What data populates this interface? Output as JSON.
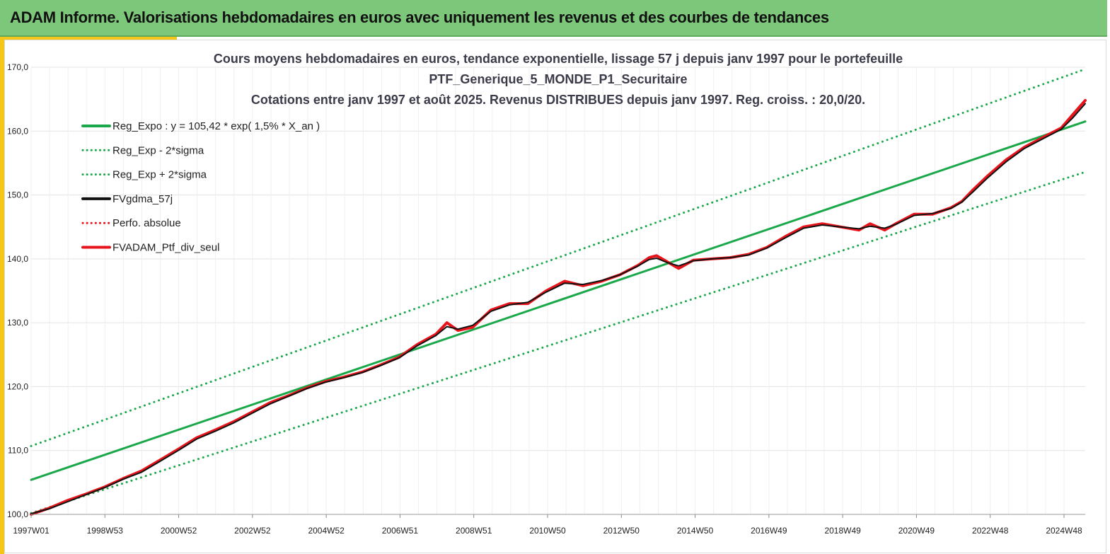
{
  "header": {
    "title": "ADAM Informe. Valorisations hebdomadaires en euros avec uniquement les revenus et des courbes de tendances"
  },
  "colors": {
    "header_bg": "#7dc77a",
    "accent": "#f5c518",
    "green": "#1aa84a",
    "red": "#e8141b",
    "black": "#111111"
  },
  "chart_data": {
    "type": "line",
    "title": [
      "Cours moyens hebdomadaires  en euros, tendance exponentielle, lissage 57 j depuis janv 1997 pour le portefeuille",
      "PTF_Generique_5_MONDE_P1_Securitaire",
      "Cotations  entre janv 1997 et août  2025. Revenus DISTRIBUES depuis janv 1997. Reg. croiss. : 20,0/20."
    ],
    "x_tick_labels": [
      "1997W01",
      "1998W53",
      "2000W52",
      "2002W52",
      "2004W52",
      "2006W51",
      "2008W51",
      "2010W50",
      "2012W50",
      "2014W50",
      "2016W49",
      "2018W49",
      "2020W49",
      "2022W48",
      "2024W48"
    ],
    "x_range": [
      1997.0,
      2025.65
    ],
    "ylim": [
      100,
      170
    ],
    "y_ticks": [
      "100,0",
      "110,0",
      "120,0",
      "130,0",
      "140,0",
      "150,0",
      "160,0",
      "170,0"
    ],
    "grid": true,
    "legend_position": "top-left",
    "legend": [
      {
        "label": "Reg_Expo : y = 105,42 * exp( 1,5% *  X_an )",
        "color": "#1aa84a",
        "style": "solid"
      },
      {
        "label": "Reg_Exp - 2*sigma",
        "color": "#1aa84a",
        "style": "dotted"
      },
      {
        "label": "Reg_Exp + 2*sigma",
        "color": "#1aa84a",
        "style": "dotted"
      },
      {
        "label": "FVgdma_57j",
        "color": "#111111",
        "style": "solid"
      },
      {
        "label": "Perfo. absolue",
        "color": "#e8141b",
        "style": "dotted"
      },
      {
        "label": "FVADAM_Ptf_div_seul",
        "color": "#e8141b",
        "style": "solid"
      }
    ],
    "series": [
      {
        "name": "Reg_Expo : y = 105,42 * exp( 1,5% *  X_an )",
        "x": [
          1997.0,
          2025.65
        ],
        "y": [
          105.4,
          161.5
        ]
      },
      {
        "name": "Reg_Exp - 2*sigma",
        "x": [
          1997.0,
          2025.65
        ],
        "y": [
          100.2,
          153.6
        ]
      },
      {
        "name": "Reg_Exp + 2*sigma",
        "x": [
          1997.0,
          2025.65
        ],
        "y": [
          110.7,
          169.7
        ]
      },
      {
        "name": "FVADAM_Ptf_div_seul",
        "x": [
          1997.0,
          1997.5,
          1998.0,
          1998.5,
          1999.0,
          1999.5,
          2000.0,
          2000.5,
          2001.0,
          2001.5,
          2002.0,
          2002.5,
          2003.0,
          2003.5,
          2004.0,
          2004.5,
          2005.0,
          2005.5,
          2006.0,
          2006.5,
          2007.0,
          2007.5,
          2008.0,
          2008.3,
          2008.6,
          2009.0,
          2009.5,
          2010.0,
          2010.5,
          2011.0,
          2011.5,
          2012.0,
          2012.5,
          2013.0,
          2013.5,
          2013.8,
          2014.0,
          2014.3,
          2014.6,
          2015.0,
          2015.5,
          2016.0,
          2016.5,
          2017.0,
          2017.5,
          2018.0,
          2018.5,
          2019.0,
          2019.5,
          2019.8,
          2020.2,
          2020.5,
          2021.0,
          2021.5,
          2022.0,
          2022.3,
          2022.6,
          2023.0,
          2023.5,
          2024.0,
          2024.5,
          2025.0,
          2025.3,
          2025.65
        ],
        "y": [
          100.0,
          101.0,
          102.2,
          103.2,
          104.3,
          105.6,
          106.8,
          108.5,
          110.2,
          112.0,
          113.2,
          114.5,
          116.0,
          117.5,
          118.6,
          119.8,
          120.8,
          121.5,
          122.3,
          123.4,
          124.6,
          126.6,
          128.2,
          130.0,
          128.8,
          129.3,
          132.0,
          133.0,
          133.0,
          135.0,
          136.5,
          135.8,
          136.5,
          137.5,
          139.0,
          140.2,
          140.5,
          139.5,
          138.5,
          139.8,
          140.0,
          140.2,
          140.7,
          141.8,
          143.5,
          145.0,
          145.5,
          145.0,
          144.5,
          145.5,
          144.5,
          145.5,
          147.0,
          147.0,
          148.0,
          149.0,
          150.8,
          153.0,
          155.5,
          157.5,
          159.0,
          160.5,
          162.5,
          164.8
        ]
      },
      {
        "name": "FVgdma_57j",
        "x": [
          1997.0,
          1997.5,
          1998.0,
          1998.5,
          1999.0,
          1999.5,
          2000.0,
          2000.5,
          2001.0,
          2001.5,
          2002.0,
          2002.5,
          2003.0,
          2003.5,
          2004.0,
          2004.5,
          2005.0,
          2005.5,
          2006.0,
          2006.5,
          2007.0,
          2007.5,
          2008.0,
          2008.3,
          2008.6,
          2009.0,
          2009.5,
          2010.0,
          2010.5,
          2011.0,
          2011.5,
          2012.0,
          2012.5,
          2013.0,
          2013.5,
          2013.8,
          2014.0,
          2014.3,
          2014.6,
          2015.0,
          2015.5,
          2016.0,
          2016.5,
          2017.0,
          2017.5,
          2018.0,
          2018.5,
          2019.0,
          2019.5,
          2019.8,
          2020.2,
          2020.5,
          2021.0,
          2021.5,
          2022.0,
          2022.3,
          2022.6,
          2023.0,
          2023.5,
          2024.0,
          2024.5,
          2025.0,
          2025.3,
          2025.65
        ],
        "y": [
          100.1,
          100.9,
          102.0,
          103.1,
          104.2,
          105.5,
          106.6,
          108.3,
          110.0,
          111.8,
          113.0,
          114.3,
          115.8,
          117.3,
          118.5,
          119.7,
          120.7,
          121.4,
          122.2,
          123.3,
          124.5,
          126.4,
          128.0,
          129.4,
          129.0,
          129.6,
          131.8,
          132.8,
          133.2,
          134.8,
          136.2,
          136.0,
          136.6,
          137.5,
          138.9,
          139.9,
          140.1,
          139.4,
          138.9,
          139.7,
          140.0,
          140.2,
          140.6,
          141.7,
          143.3,
          144.8,
          145.3,
          145.0,
          144.7,
          145.1,
          144.8,
          145.4,
          146.8,
          147.1,
          147.9,
          148.9,
          150.5,
          152.7,
          155.2,
          157.3,
          158.8,
          160.3,
          162.0,
          164.3
        ]
      }
    ]
  }
}
